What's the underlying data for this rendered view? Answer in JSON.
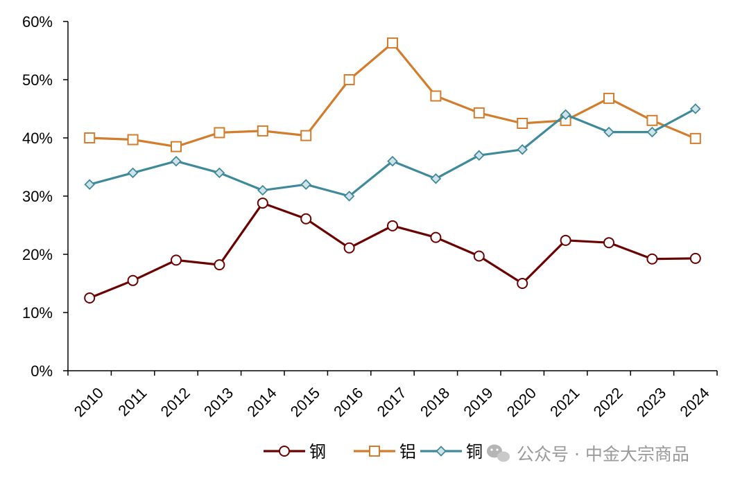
{
  "chart_data": {
    "type": "line",
    "title": "",
    "xlabel": "",
    "ylabel": "",
    "categories": [
      "2010",
      "2011",
      "2012",
      "2013",
      "2014",
      "2015",
      "2016",
      "2017",
      "2018",
      "2019",
      "2020",
      "2021",
      "2022",
      "2023",
      "2024"
    ],
    "ylim": [
      0,
      60
    ],
    "yticks": [
      0,
      10,
      20,
      30,
      40,
      50,
      60
    ],
    "ytick_labels": [
      "0%",
      "10%",
      "20%",
      "30%",
      "40%",
      "50%",
      "60%"
    ],
    "grid": false,
    "legend_position": "bottom",
    "series": [
      {
        "name": "钢",
        "color": "#6B0000",
        "marker": "circle",
        "values": [
          12.5,
          15.5,
          19.0,
          18.2,
          28.8,
          26.1,
          21.1,
          24.9,
          22.9,
          19.7,
          15.0,
          22.4,
          22.0,
          19.2,
          19.3
        ]
      },
      {
        "name": "铝",
        "color": "#D27C2C",
        "marker": "square",
        "values": [
          40.0,
          39.7,
          38.5,
          40.9,
          41.2,
          40.4,
          50.0,
          56.3,
          47.2,
          44.3,
          42.5,
          43.0,
          46.8,
          43.0,
          39.9
        ]
      },
      {
        "name": "铜",
        "color": "#3E8A9A",
        "marker": "diamond",
        "values": [
          32.0,
          34.0,
          36.0,
          34.0,
          31.0,
          32.0,
          30.0,
          36.0,
          33.0,
          37.0,
          38.0,
          44.0,
          41.0,
          41.0,
          45.0
        ]
      }
    ]
  },
  "watermark": {
    "text": "公众号 · 中金大宗商品",
    "icon": "wechat-icon"
  }
}
